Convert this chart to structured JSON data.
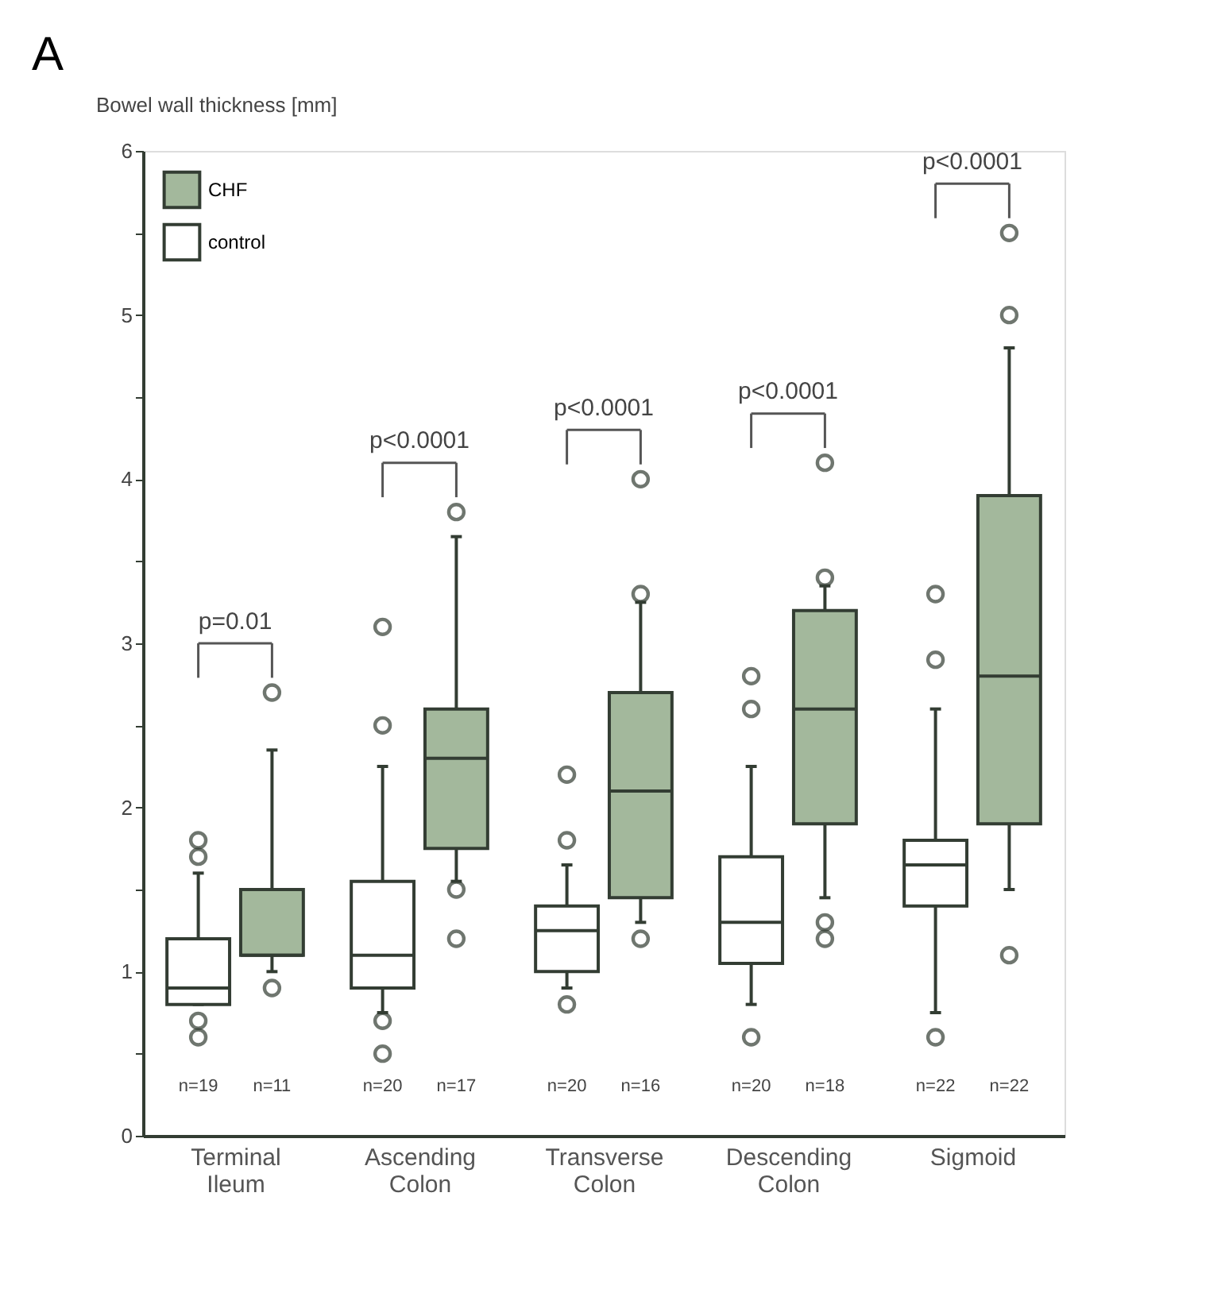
{
  "chart_data": {
    "type": "box",
    "title": "A",
    "ylabel": "Bowel wall thickness [mm]",
    "categories": [
      "Terminal Ileum",
      "Ascending Colon",
      "Transverse Colon",
      "Descending Colon",
      "Sigmoid"
    ],
    "series": [
      {
        "name": "control",
        "color": "#ffffff",
        "boxes": [
          {
            "low": 0.8,
            "q1": 0.8,
            "median": 0.9,
            "q3": 1.2,
            "high": 1.6,
            "outliers": [
              0.6,
              0.7,
              1.7,
              1.8
            ]
          },
          {
            "low": 0.75,
            "q1": 0.9,
            "median": 1.1,
            "q3": 1.55,
            "high": 2.25,
            "outliers": [
              0.5,
              0.7,
              2.5,
              3.1
            ]
          },
          {
            "low": 0.9,
            "q1": 1.0,
            "median": 1.25,
            "q3": 1.4,
            "high": 1.65,
            "outliers": [
              0.8,
              1.8,
              2.2
            ]
          },
          {
            "low": 0.8,
            "q1": 1.05,
            "median": 1.3,
            "q3": 1.7,
            "high": 2.25,
            "outliers": [
              0.6,
              2.6,
              2.8
            ]
          },
          {
            "low": 0.75,
            "q1": 1.4,
            "median": 1.65,
            "q3": 1.8,
            "high": 2.6,
            "outliers": [
              0.6,
              2.9,
              3.3
            ]
          }
        ]
      },
      {
        "name": "CHF",
        "color": "#a3b89c",
        "boxes": [
          {
            "low": 1.0,
            "q1": 1.1,
            "median": 1.1,
            "q3": 1.5,
            "high": 2.35,
            "outliers": [
              0.9,
              2.7
            ]
          },
          {
            "low": 1.55,
            "q1": 1.75,
            "median": 2.3,
            "q3": 2.6,
            "high": 3.65,
            "outliers": [
              1.2,
              1.5,
              3.8
            ]
          },
          {
            "low": 1.3,
            "q1": 1.45,
            "median": 2.1,
            "q3": 2.7,
            "high": 3.25,
            "outliers": [
              1.2,
              3.3,
              4.0
            ]
          },
          {
            "low": 1.45,
            "q1": 1.9,
            "median": 2.6,
            "q3": 3.2,
            "high": 3.35,
            "outliers": [
              1.2,
              1.3,
              3.4,
              4.1
            ]
          },
          {
            "low": 1.5,
            "q1": 1.9,
            "median": 2.8,
            "q3": 3.9,
            "high": 4.8,
            "outliers": [
              1.1,
              5.0,
              5.5
            ]
          }
        ]
      }
    ],
    "ylim": [
      0,
      6
    ],
    "yticks": [
      0,
      {
        "value": 0.5,
        "label": null
      },
      1,
      {
        "value": 1.5,
        "label": null
      },
      2,
      {
        "value": 2.5,
        "label": null
      },
      3,
      {
        "value": 3.5,
        "label": null
      },
      4,
      {
        "value": 4.5,
        "label": null
      },
      5,
      {
        "value": 5.5,
        "label": null
      },
      6
    ],
    "legend": "top left",
    "grid": false,
    "annotations": [
      "p=0.01",
      "p<0.0001",
      "p<0.0001",
      "p<0.0001",
      "p<0.0001",
      "n=19",
      "n=11",
      "n=20",
      "n=17",
      "n=20",
      "n=16",
      "n=20",
      "n=18",
      "n=22",
      "n=22"
    ]
  }
}
